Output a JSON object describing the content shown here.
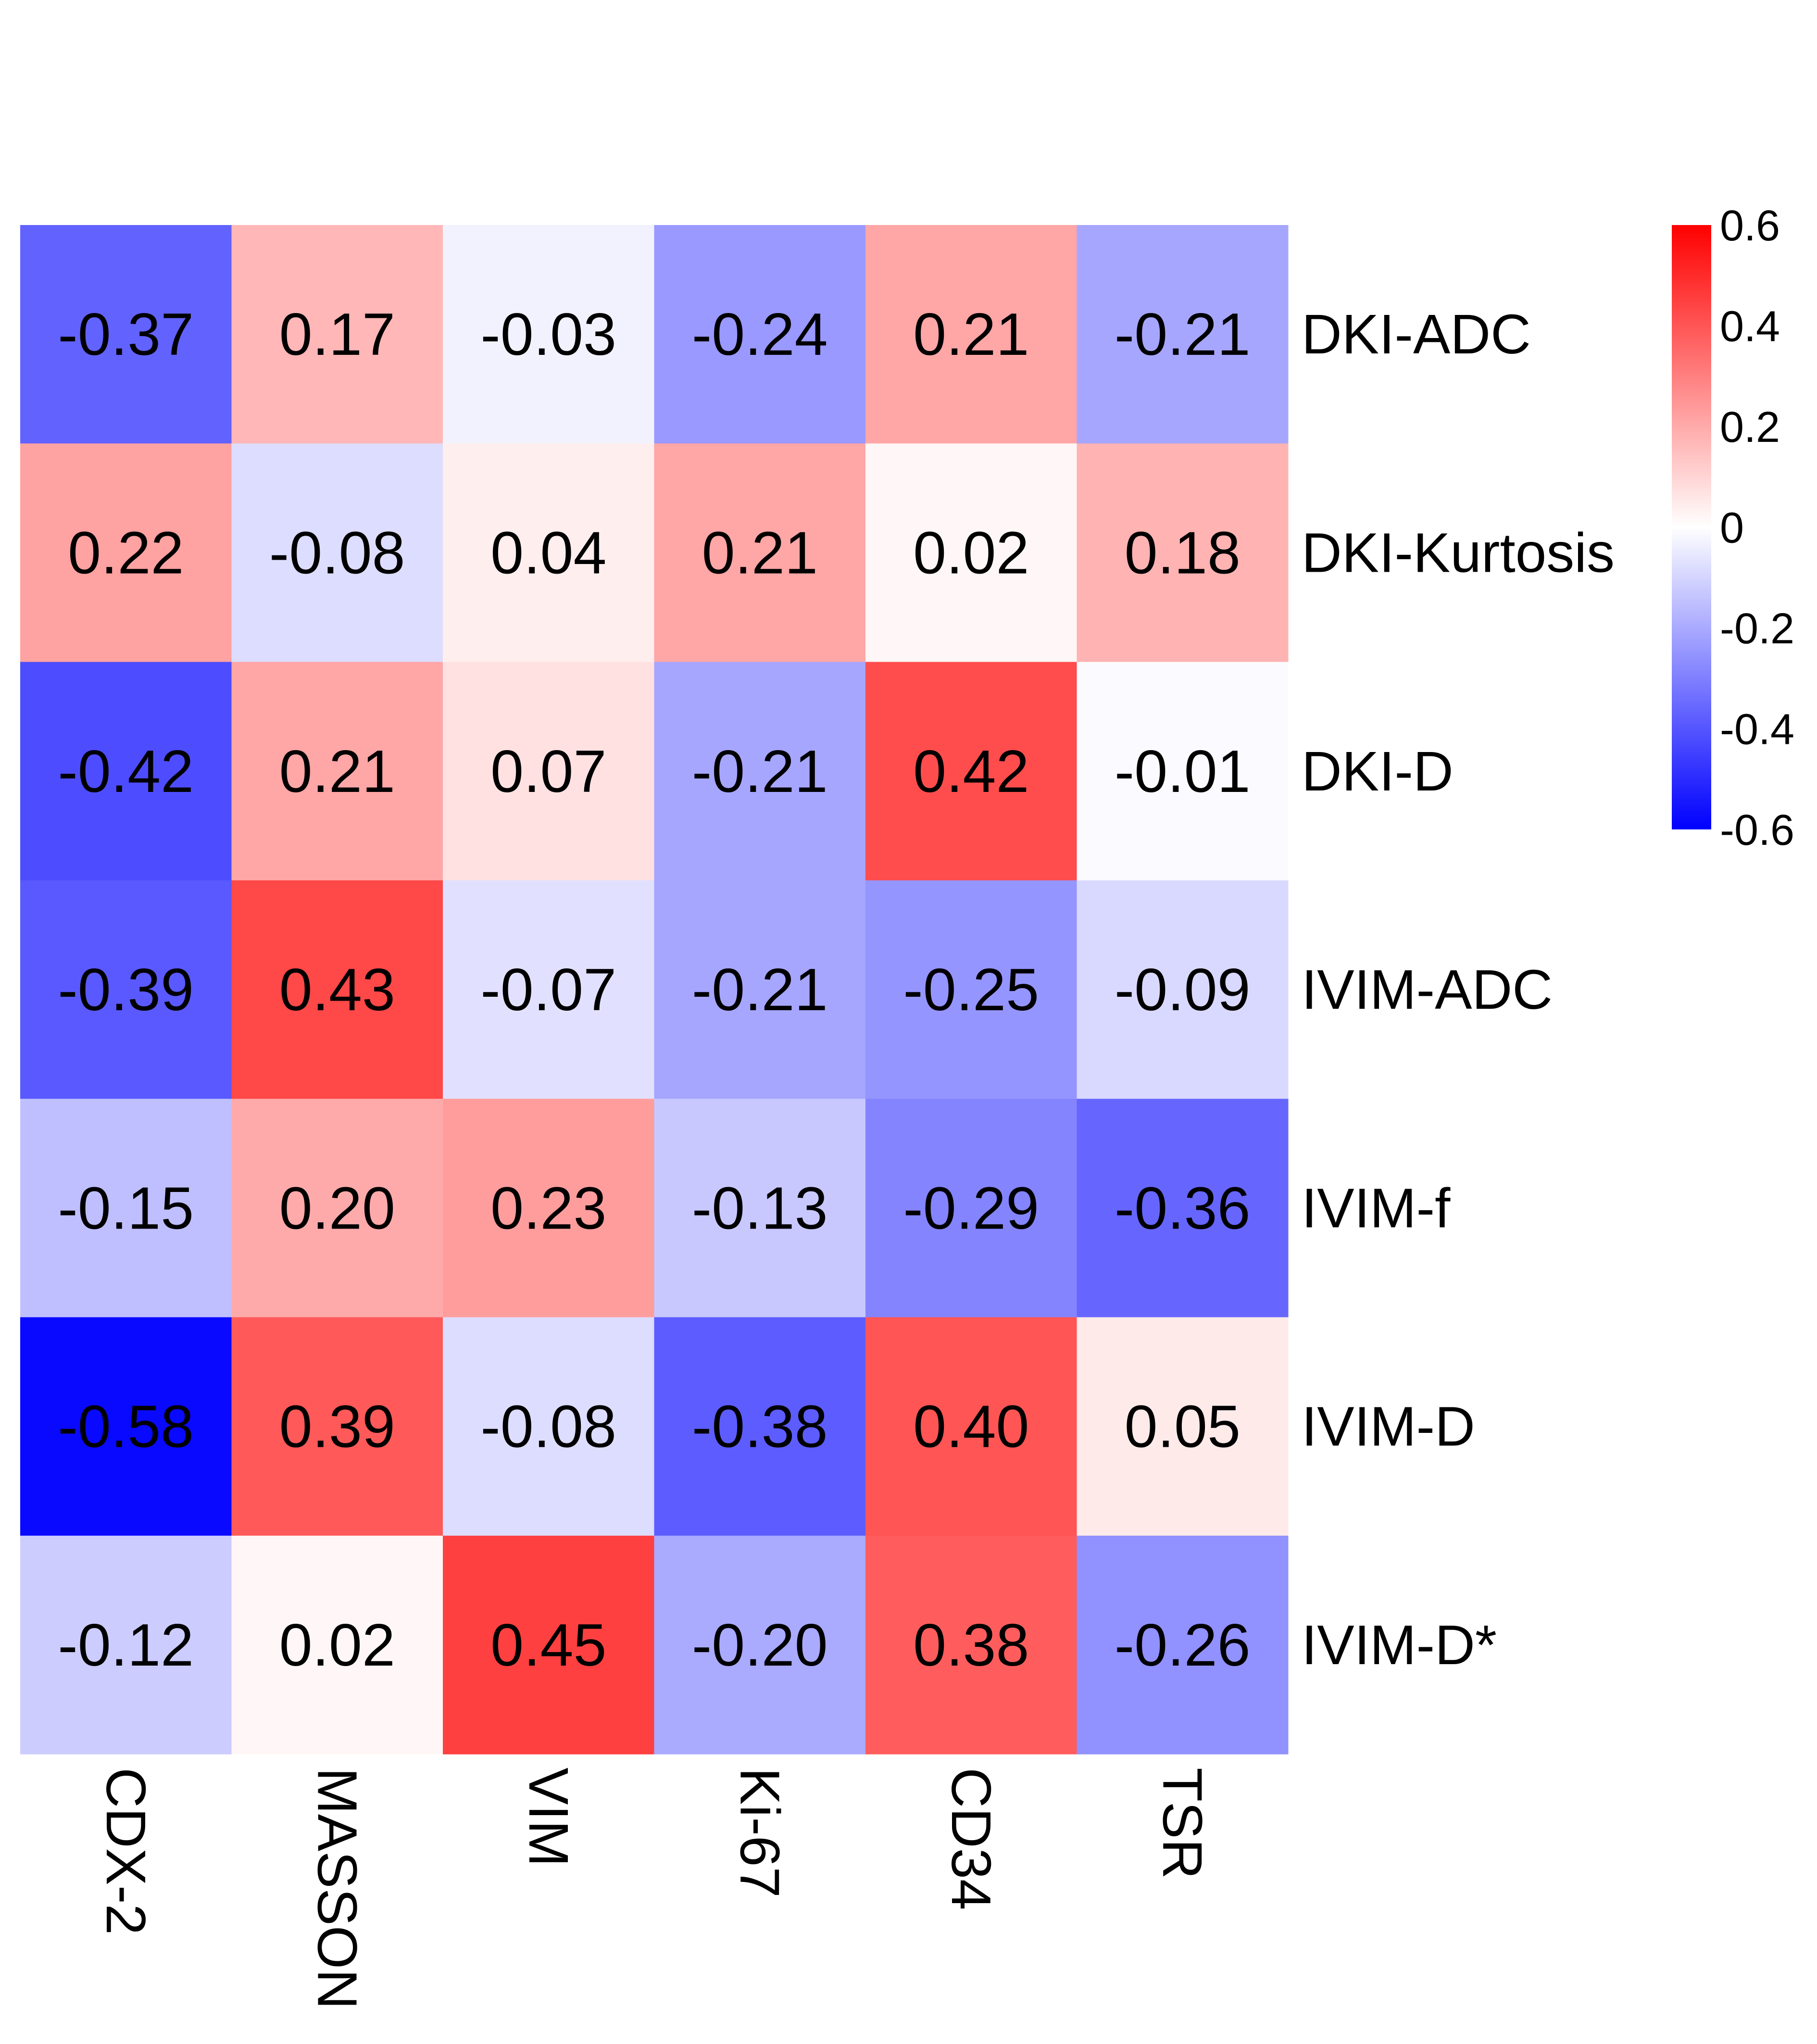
{
  "chart_data": {
    "type": "heatmap",
    "rows": [
      "DKI-ADC",
      "DKI-Kurtosis",
      "DKI-D",
      "IVIM-ADC",
      "IVIM-f",
      "IVIM-D",
      "IVIM-D*"
    ],
    "columns": [
      "CDX-2",
      "MASSON",
      "VIM",
      "Ki-67",
      "CD34",
      "TSR"
    ],
    "values": [
      [
        -0.37,
        0.17,
        -0.03,
        -0.24,
        0.21,
        -0.21
      ],
      [
        0.22,
        -0.08,
        0.04,
        0.21,
        0.02,
        0.18
      ],
      [
        -0.42,
        0.21,
        0.07,
        -0.21,
        0.42,
        -0.01
      ],
      [
        -0.39,
        0.43,
        -0.07,
        -0.21,
        -0.25,
        -0.09
      ],
      [
        -0.15,
        0.2,
        0.23,
        -0.13,
        -0.29,
        -0.36
      ],
      [
        -0.58,
        0.39,
        -0.08,
        -0.38,
        0.4,
        0.05
      ],
      [
        -0.12,
        0.02,
        0.45,
        -0.2,
        0.38,
        -0.26
      ]
    ],
    "labels": [
      [
        "-0.37",
        "0.17",
        "-0.03",
        "-0.24",
        "0.21",
        "-0.21"
      ],
      [
        "0.22",
        "-0.08",
        "0.04",
        "0.21",
        "0.02",
        "0.18"
      ],
      [
        "-0.42",
        "0.21",
        "0.07",
        "-0.21",
        "0.42",
        "-0.01"
      ],
      [
        "-0.39",
        "0.43",
        "-0.07",
        "-0.21",
        "-0.25",
        "-0.09"
      ],
      [
        "-0.15",
        "0.20",
        "0.23",
        "-0.13",
        "-0.29",
        "-0.36"
      ],
      [
        "-0.58",
        "0.39",
        "-0.08",
        "-0.38",
        "0.40",
        "0.05"
      ],
      [
        "-0.12",
        "0.02",
        "0.45",
        "-0.20",
        "0.38",
        "-0.26"
      ]
    ],
    "color_scale": {
      "min": -0.6,
      "max": 0.6,
      "low_color": "#0000ff",
      "mid_color": "#ffffff",
      "high_color": "#ff0000"
    },
    "legend": {
      "position": "top-right",
      "ticks": [
        0.6,
        0.4,
        0.2,
        0,
        -0.2,
        -0.4,
        -0.6
      ],
      "tick_labels": [
        "0.6",
        "0.4",
        "0.2",
        "0",
        "-0.2",
        "-0.4",
        "-0.6"
      ]
    },
    "title": "",
    "xlabel": "",
    "ylabel": ""
  }
}
